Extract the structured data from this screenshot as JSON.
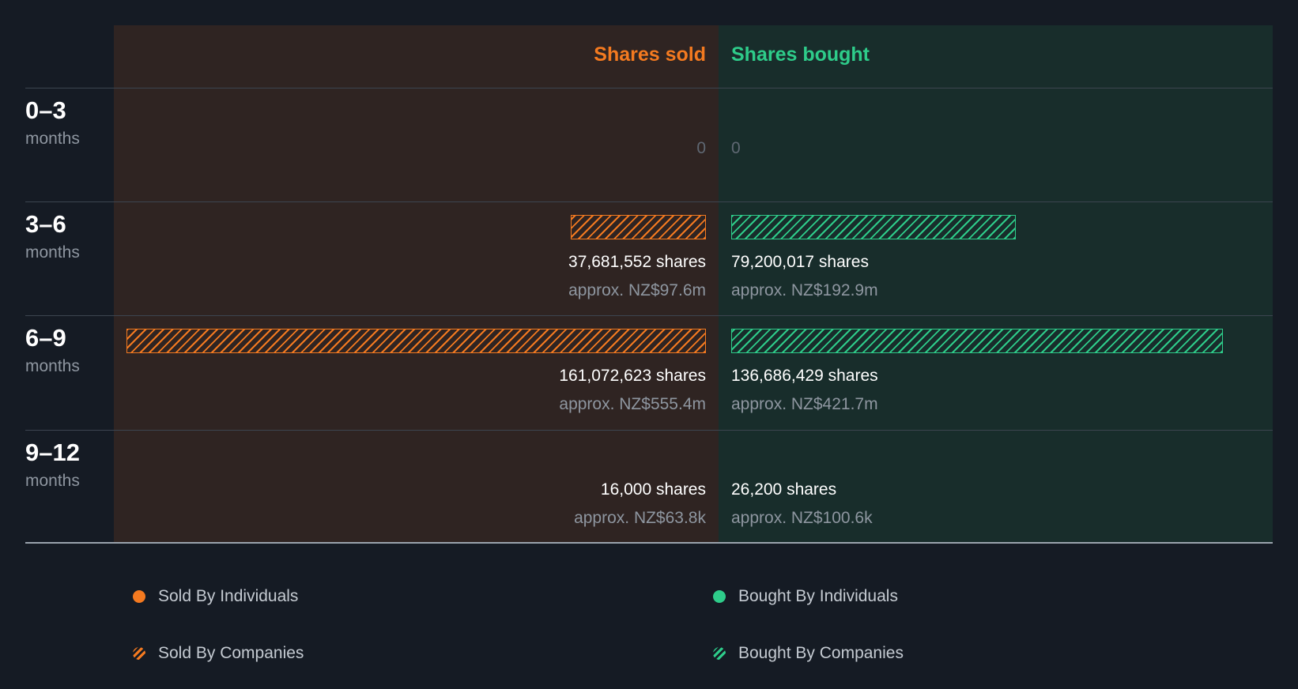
{
  "chart_data": {
    "type": "bar",
    "columns": {
      "sold": "Shares sold",
      "bought": "Shares bought"
    },
    "colors": {
      "sold": "#f47a20",
      "bought": "#2ecc8a"
    },
    "periods": [
      {
        "range": "0–3",
        "unit": "months",
        "sold_zero": "0",
        "bought_zero": "0",
        "sold_value": 0,
        "bought_value": 0
      },
      {
        "range": "3–6",
        "unit": "months",
        "sold_value": 37681552,
        "bought_value": 79200017,
        "sold_shares": "37,681,552 shares",
        "sold_approx": "approx. NZ$97.6m",
        "bought_shares": "79,200,017 shares",
        "bought_approx": "approx. NZ$192.9m"
      },
      {
        "range": "6–9",
        "unit": "months",
        "sold_value": 161072623,
        "bought_value": 136686429,
        "sold_shares": "161,072,623 shares",
        "sold_approx": "approx. NZ$555.4m",
        "bought_shares": "136,686,429 shares",
        "bought_approx": "approx. NZ$421.7m"
      },
      {
        "range": "9–12",
        "unit": "months",
        "sold_value": 16000,
        "bought_value": 26200,
        "sold_shares": "16,000 shares",
        "sold_approx": "approx. NZ$63.8k",
        "bought_shares": "26,200 shares",
        "bought_approx": "approx. NZ$100.6k"
      }
    ]
  },
  "legend": [
    {
      "label": "Sold By Individuals",
      "swatch": "orange"
    },
    {
      "label": "Bought By Individuals",
      "swatch": "green"
    },
    {
      "label": "Sold By Companies",
      "swatch": "hatched-orange"
    },
    {
      "label": "Bought By Companies",
      "swatch": "hatched-green"
    }
  ]
}
